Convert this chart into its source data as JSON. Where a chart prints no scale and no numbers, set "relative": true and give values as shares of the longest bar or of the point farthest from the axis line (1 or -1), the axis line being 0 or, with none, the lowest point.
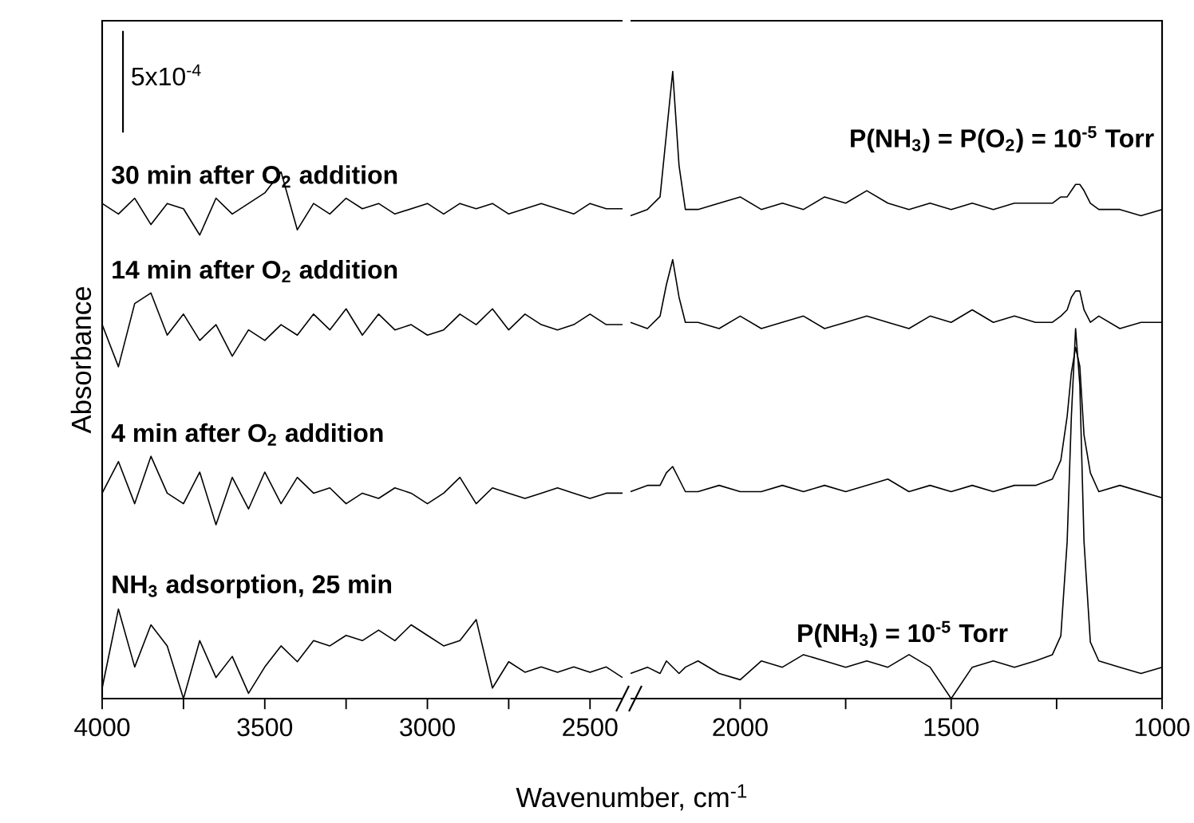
{
  "chart_data": [
    {
      "type": "line",
      "relative": true,
      "ylabel": "Absorbance",
      "xlabel": "Wavenumber, cm$^{-1}$",
      "xlim": [
        4000,
        2400
      ],
      "xticks": [
        4000,
        {
          "value": 3750,
          "label": null
        },
        3500,
        {
          "value": 3250,
          "label": null
        },
        3000,
        {
          "value": 2750,
          "label": null
        },
        2500
      ],
      "x": [
        4000,
        3950,
        3900,
        3850,
        3800,
        3750,
        3700,
        3650,
        3600,
        3550,
        3500,
        3450,
        3400,
        3350,
        3300,
        3250,
        3200,
        3150,
        3100,
        3050,
        3000,
        2950,
        2900,
        2850,
        2800,
        2750,
        2700,
        2650,
        2600,
        2550,
        2500,
        2450,
        2400
      ],
      "annotations": [
        "5x10$^{-4}$"
      ],
      "series": [
        {
          "name": "30 min after O$_{2}$ addition",
          "color": "#000000",
          "values": [
            0.94,
            0.92,
            0.95,
            0.9,
            0.94,
            0.93,
            0.88,
            0.95,
            0.92,
            0.94,
            0.96,
            1.0,
            0.89,
            0.94,
            0.92,
            0.95,
            0.93,
            0.94,
            0.92,
            0.93,
            0.94,
            0.92,
            0.94,
            0.93,
            0.94,
            0.92,
            0.93,
            0.94,
            0.93,
            0.92,
            0.94,
            0.93,
            0.93
          ]
        },
        {
          "name": "14 min after O$_{2}$ addition",
          "color": "#000000",
          "values": [
            0.71,
            0.63,
            0.75,
            0.77,
            0.69,
            0.73,
            0.68,
            0.71,
            0.65,
            0.7,
            0.68,
            0.71,
            0.69,
            0.73,
            0.7,
            0.74,
            0.69,
            0.73,
            0.7,
            0.71,
            0.69,
            0.7,
            0.73,
            0.71,
            0.74,
            0.7,
            0.73,
            0.71,
            0.7,
            0.71,
            0.73,
            0.71,
            0.71
          ]
        },
        {
          "name": "4 min after O$_{2}$ addition",
          "color": "#000000",
          "values": [
            0.39,
            0.45,
            0.37,
            0.46,
            0.39,
            0.37,
            0.43,
            0.33,
            0.42,
            0.36,
            0.43,
            0.37,
            0.42,
            0.39,
            0.4,
            0.37,
            0.39,
            0.38,
            0.4,
            0.39,
            0.37,
            0.39,
            0.42,
            0.37,
            0.4,
            0.39,
            0.38,
            0.39,
            0.4,
            0.39,
            0.38,
            0.39,
            0.39
          ]
        },
        {
          "name": "NH$_{3}$ adsorption, 25 min",
          "color": "#000000",
          "values": [
            0.02,
            0.17,
            0.06,
            0.14,
            0.1,
            0.0,
            0.11,
            0.04,
            0.08,
            0.01,
            0.06,
            0.1,
            0.07,
            0.11,
            0.1,
            0.12,
            0.11,
            0.13,
            0.11,
            0.14,
            0.12,
            0.1,
            0.11,
            0.15,
            0.02,
            0.07,
            0.05,
            0.06,
            0.05,
            0.06,
            0.05,
            0.06,
            0.04
          ]
        }
      ]
    },
    {
      "type": "line",
      "relative": true,
      "xlim": [
        2260,
        1000
      ],
      "xticks": [
        2000,
        {
          "value": 1750,
          "label": null
        },
        1500,
        {
          "value": 1250,
          "label": null
        },
        1000
      ],
      "x": [
        2260,
        2220,
        2190,
        2175,
        2160,
        2145,
        2130,
        2100,
        2050,
        2000,
        1950,
        1900,
        1850,
        1800,
        1750,
        1700,
        1650,
        1600,
        1550,
        1500,
        1450,
        1400,
        1350,
        1300,
        1260,
        1240,
        1225,
        1215,
        1205,
        1195,
        1185,
        1170,
        1150,
        1100,
        1050,
        1000
      ],
      "annotations": [
        "P(NH$_{3}$) = P(O$_{2}$) = 10$^{-5}$ Torr",
        "P(NH$_{3}$) = 10$^{-5}$ Torr"
      ],
      "series": [
        {
          "color": "#000000",
          "values": [
            0.77,
            0.78,
            0.8,
            0.9,
            1.0,
            0.85,
            0.78,
            0.78,
            0.79,
            0.8,
            0.78,
            0.79,
            0.78,
            0.8,
            0.79,
            0.81,
            0.79,
            0.78,
            0.79,
            0.78,
            0.79,
            0.78,
            0.79,
            0.79,
            0.79,
            0.8,
            0.8,
            0.81,
            0.82,
            0.82,
            0.81,
            0.79,
            0.78,
            0.78,
            0.77,
            0.78
          ]
        },
        {
          "color": "#000000",
          "values": [
            0.6,
            0.59,
            0.61,
            0.66,
            0.7,
            0.64,
            0.6,
            0.6,
            0.59,
            0.61,
            0.59,
            0.6,
            0.61,
            0.59,
            0.6,
            0.61,
            0.6,
            0.59,
            0.61,
            0.6,
            0.62,
            0.6,
            0.61,
            0.6,
            0.6,
            0.61,
            0.62,
            0.64,
            0.65,
            0.65,
            0.62,
            0.6,
            0.61,
            0.59,
            0.6,
            0.6
          ]
        },
        {
          "color": "#000000",
          "values": [
            0.33,
            0.34,
            0.34,
            0.36,
            0.37,
            0.35,
            0.33,
            0.33,
            0.34,
            0.33,
            0.33,
            0.34,
            0.33,
            0.34,
            0.33,
            0.34,
            0.35,
            0.33,
            0.34,
            0.33,
            0.34,
            0.33,
            0.34,
            0.34,
            0.35,
            0.38,
            0.45,
            0.52,
            0.56,
            0.53,
            0.42,
            0.36,
            0.33,
            0.34,
            0.33,
            0.32
          ]
        },
        {
          "color": "#000000",
          "values": [
            0.04,
            0.05,
            0.04,
            0.06,
            0.05,
            0.04,
            0.05,
            0.06,
            0.04,
            0.03,
            0.06,
            0.05,
            0.07,
            0.06,
            0.05,
            0.06,
            0.05,
            0.07,
            0.05,
            0.0,
            0.05,
            0.06,
            0.05,
            0.06,
            0.07,
            0.1,
            0.25,
            0.45,
            0.59,
            0.5,
            0.25,
            0.09,
            0.06,
            0.05,
            0.04,
            0.05
          ]
        }
      ]
    }
  ]
}
